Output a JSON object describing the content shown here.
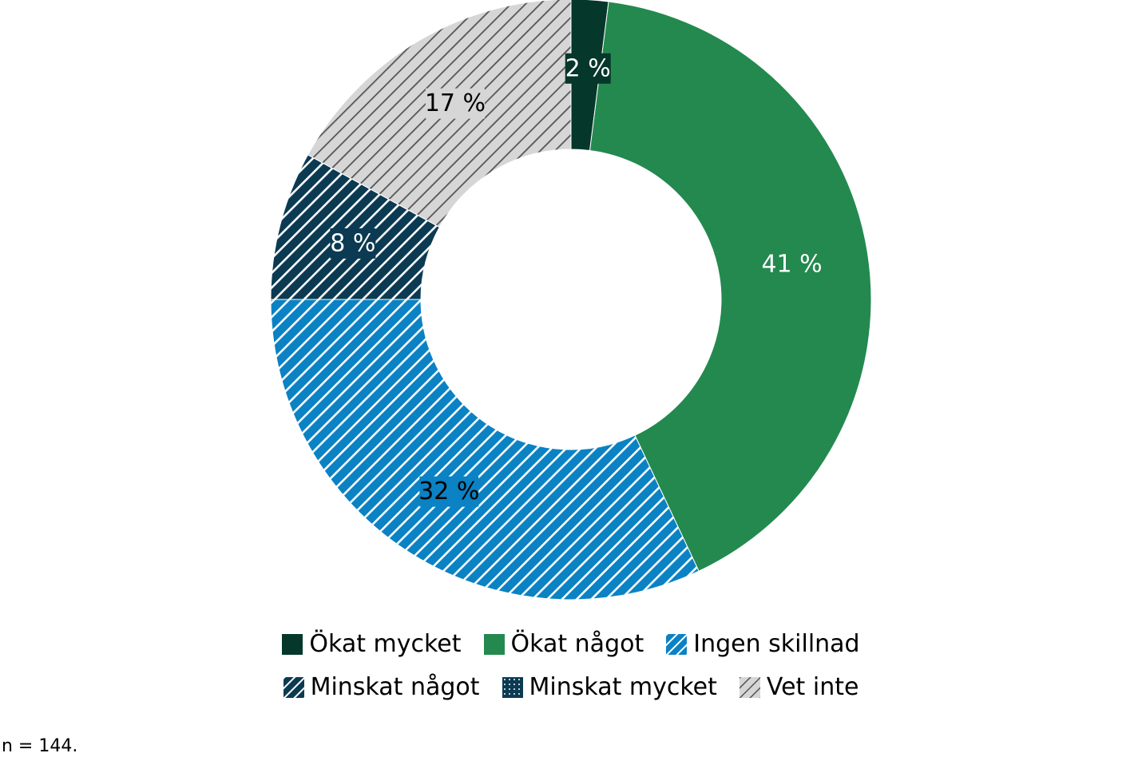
{
  "chart_data": {
    "type": "pie",
    "variant": "donut",
    "title": "",
    "categories": [
      "Ökat mycket",
      "Ökat något",
      "Ingen skillnad",
      "Minskat något",
      "Minskat mycket",
      "Vet inte"
    ],
    "values": [
      2,
      41,
      32,
      8,
      0,
      17
    ],
    "value_labels": [
      "2 %",
      "41 %",
      "32 %",
      "8 %",
      "",
      "17 %"
    ],
    "unit": "%",
    "colors": [
      "#05372a",
      "#24894f",
      "#0a82c4",
      "#0b3a52",
      "#0b3a52",
      "#d6d6d6"
    ],
    "patterns": [
      "solid",
      "solid",
      "diagonal-hatch",
      "diagonal-hatch",
      "dots",
      "diagonal-hatch"
    ],
    "start_angle": "12 o'clock",
    "direction": "clockwise",
    "legend": {
      "position": "bottom",
      "rows": [
        [
          "Ökat mycket",
          "Ökat något",
          "Ingen skillnad"
        ],
        [
          "Minskat något",
          "Minskat mycket",
          "Vet inte"
        ]
      ]
    }
  },
  "footnote": "n = 144."
}
